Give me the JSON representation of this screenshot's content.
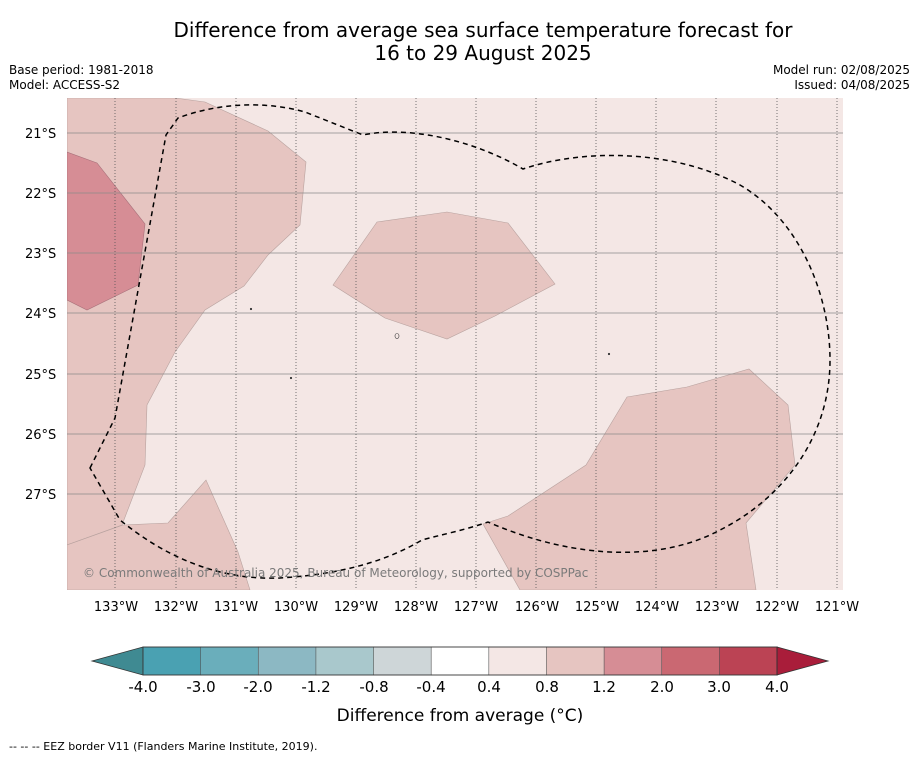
{
  "title_line1": "Difference from average sea surface temperature forecast for",
  "title_line2": "16 to 29 August 2025",
  "base_period": "Base period: 1981-2018",
  "model": "Model: ACCESS-S2",
  "model_run": "Model run: 02/08/2025",
  "issued": "Issued: 04/08/2025",
  "copyright": "© Commonwealth of Australia 2025, Bureau of Meteorology, supported by COSPPac",
  "footnote": "-- -- -- EEZ border V11 (Flanders Marine Institute, 2019).",
  "colorbar": {
    "label": "Difference from average (°C)",
    "ticks": [
      "-4.0",
      "-3.0",
      "-2.0",
      "-1.2",
      "-0.8",
      "-0.4",
      "0.4",
      "0.8",
      "1.2",
      "2.0",
      "3.0",
      "4.0"
    ],
    "colors": [
      "#4aa1b2",
      "#6aaebb",
      "#8cb8c3",
      "#a9c8cc",
      "#ced6d8",
      "#ffffff",
      "#f4e7e5",
      "#e6c5c1",
      "#d68d95",
      "#ca6872",
      "#bb4354"
    ],
    "under_color": "#3f8a92",
    "over_color": "#a91d3a"
  },
  "map": {
    "lon_labels": [
      "133°W",
      "132°W",
      "131°W",
      "130°W",
      "129°W",
      "128°W",
      "127°W",
      "126°W",
      "125°W",
      "124°W",
      "123°W",
      "122°W",
      "121°W"
    ],
    "lat_labels": [
      "21°S",
      "22°S",
      "23°S",
      "24°S",
      "25°S",
      "26°S",
      "27°S"
    ],
    "lon_range": [
      -133.8,
      -120.9
    ],
    "lat_range": [
      -28.6,
      -20.4
    ],
    "background_class_color": "#f4e7e5",
    "medium_class_color": "#e6c5c1",
    "high_class_color": "#d68d95"
  }
}
